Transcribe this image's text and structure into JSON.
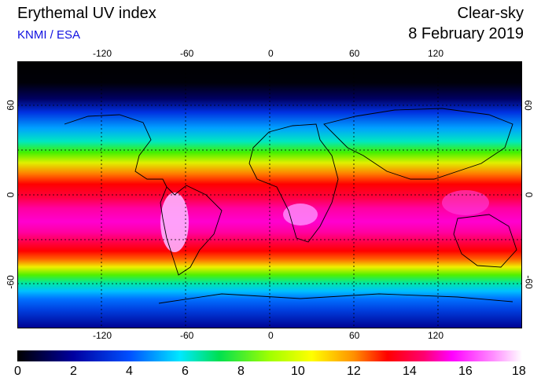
{
  "header": {
    "title": "Erythemal UV index",
    "source": "KNMI / ESA",
    "mode": "Clear-sky",
    "date": "8 February 2019"
  },
  "map": {
    "lon_ticks": [
      "-120",
      "-60",
      "0",
      "60",
      "120"
    ],
    "lat_ticks_left": [
      "60",
      "0",
      "-60"
    ],
    "lat_ticks_right": [
      "60",
      "0",
      "-60"
    ],
    "grid": "dotted",
    "coastlines": true
  },
  "colorbar": {
    "min": 0,
    "max": 18,
    "labels": [
      "0",
      "2",
      "4",
      "6",
      "8",
      "10",
      "12",
      "14",
      "16",
      "18"
    ],
    "stops": [
      {
        "v": 0,
        "c": "#000000"
      },
      {
        "v": 2,
        "c": "#0000a0"
      },
      {
        "v": 4,
        "c": "#0050ff"
      },
      {
        "v": 5.8,
        "c": "#00e8ff"
      },
      {
        "v": 7.2,
        "c": "#00e050"
      },
      {
        "v": 9,
        "c": "#a0ff00"
      },
      {
        "v": 10.5,
        "c": "#ffff00"
      },
      {
        "v": 12,
        "c": "#ff9000"
      },
      {
        "v": 13.2,
        "c": "#ff0000"
      },
      {
        "v": 14.5,
        "c": "#ff0070"
      },
      {
        "v": 15.5,
        "c": "#ff00ff"
      },
      {
        "v": 17,
        "c": "#ff90ff"
      },
      {
        "v": 18,
        "c": "#ffffff"
      }
    ]
  }
}
